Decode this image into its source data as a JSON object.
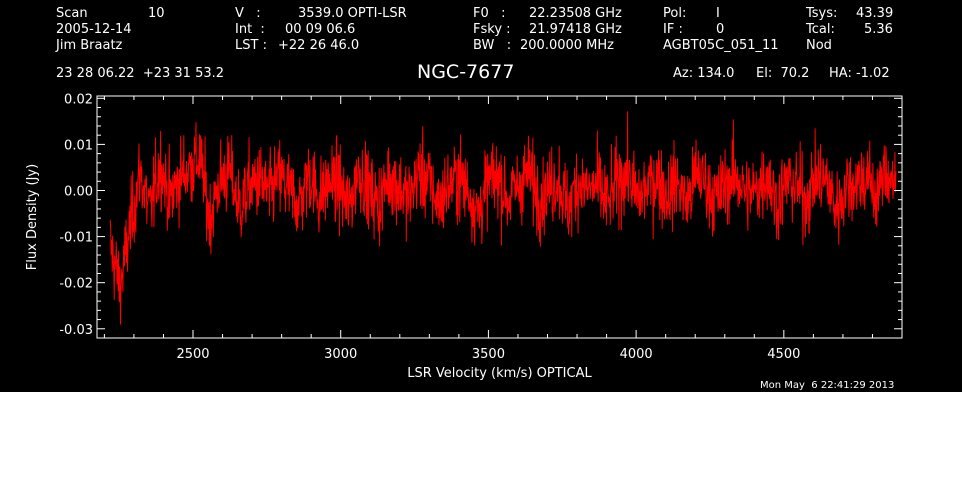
{
  "header": {
    "scan_label": "Scan",
    "scan_value": "10",
    "date": "2005-12-14",
    "observer": "Jim Braatz",
    "v_label": "V   :",
    "v_value": "3539.0 OPTI-LSR",
    "int_label": "Int  :",
    "int_value": "00 09 06.6",
    "lst_label": "LST :",
    "lst_value": "+22 26 46.0",
    "f0_label": "F0   :",
    "f0_value": "22.23508 GHz",
    "fsky_label": "Fsky :",
    "fsky_value": "21.97418 GHz",
    "bw_label": "BW   :",
    "bw_value": "200.0000 MHz",
    "pol_label": "Pol:",
    "pol_value": "I",
    "if_label": "IF :",
    "if_value": "0",
    "project": "AGBT05C_051_11",
    "tsys_label": "Tsys:",
    "tsys_value": "43.39",
    "tcal_label": "Tcal:",
    "tcal_value": "5.36",
    "proc": "Nod",
    "coords": "23 28 06.22  +23 31 53.2",
    "az": "Az: 134.0",
    "el": "El:  70.2",
    "ha": "HA: -1.02"
  },
  "timestamp": "Mon May  6 22:41:29 2013",
  "colors": {
    "background": "#000000",
    "axes": "#ffffff",
    "spectrum": "#ff0000"
  },
  "chart_data": {
    "type": "line",
    "title": "NGC-7677",
    "xlabel": "LSR Velocity (km/s) OPTICAL",
    "ylabel": "Flux Density (Jy)",
    "xlim": [
      2175,
      4900
    ],
    "ylim": [
      -0.032,
      0.0205
    ],
    "xticks": [
      2500,
      3000,
      3500,
      4000,
      4500
    ],
    "xtick_labels": [
      "2500",
      "3000",
      "3500",
      "4000",
      "4500"
    ],
    "yticks": [
      -0.03,
      -0.02,
      -0.01,
      0.0,
      0.01,
      0.02
    ],
    "ytick_labels": [
      "-0.03",
      "-0.02",
      "-0.01",
      "0.00",
      "0.01",
      "0.02"
    ],
    "grid": false,
    "series": [
      {
        "color": "#ff0000",
        "x_range": [
          2220,
          4880
        ],
        "values": [
          -0.012,
          -0.021,
          -0.008,
          0.004,
          -0.005,
          0.006,
          -0.002,
          0.003,
          0.005,
          0.007,
          -0.006,
          0.002,
          0.004,
          -0.004,
          0.001,
          0.002,
          -0.001,
          0.003,
          0.0,
          -0.003,
          0.004,
          -0.002,
          0.002,
          0.001,
          -0.004,
          0.005,
          0.0,
          -0.003,
          0.003,
          0.001,
          -0.002,
          0.004,
          0.002,
          -0.003,
          0.001,
          0.003,
          0.0,
          -0.005,
          0.002,
          0.003,
          -0.002,
          0.001,
          0.004,
          -0.001,
          0.0,
          0.003,
          -0.004,
          0.002,
          0.0,
          0.001,
          -0.003,
          0.002,
          0.004,
          -0.002,
          0.001,
          0.003,
          -0.001,
          0.002,
          -0.003,
          0.004,
          0.001,
          -0.002,
          0.002,
          0.003,
          -0.001,
          0.0,
          0.004,
          -0.003,
          0.002,
          0.001,
          -0.002,
          0.003,
          0.002,
          -0.004,
          0.001,
          0.002,
          0.003,
          -0.001,
          0.004,
          0.002
        ]
      }
    ]
  }
}
